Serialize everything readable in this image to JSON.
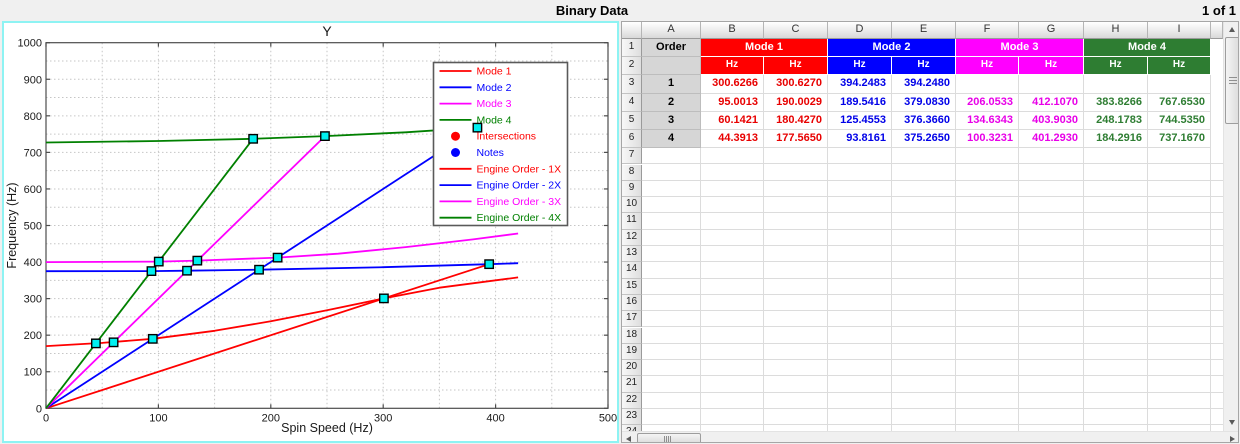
{
  "window": {
    "title": "Binary Data",
    "page_indicator": "1 of 1"
  },
  "chart_data": {
    "type": "line",
    "title": "Y",
    "xlabel": "Spin Speed (Hz)",
    "ylabel": "Frequency (Hz)",
    "xlim": [
      0,
      500
    ],
    "ylim": [
      0,
      1000
    ],
    "xticks": [
      0,
      100,
      200,
      300,
      400,
      500
    ],
    "yticks": [
      0,
      100,
      200,
      300,
      400,
      500,
      600,
      700,
      800,
      900,
      1000
    ],
    "grid": "dotted gray every 50 Hz both axes",
    "legend_position": "upper right",
    "series": [
      {
        "name": "Mode 1",
        "color": "#ff0000",
        "points": [
          [
            0,
            170
          ],
          [
            50,
            179
          ],
          [
            95,
            190
          ],
          [
            150,
            212
          ],
          [
            200,
            238
          ],
          [
            250,
            268
          ],
          [
            300.6,
            300.6
          ],
          [
            350,
            330
          ],
          [
            420,
            358
          ]
        ]
      },
      {
        "name": "Mode 2",
        "color": "#0000ff",
        "points": [
          [
            0,
            375
          ],
          [
            93.8,
            375.3
          ],
          [
            125.5,
            376.4
          ],
          [
            189.5,
            379.1
          ],
          [
            300,
            386
          ],
          [
            394.2,
            394.2
          ],
          [
            420,
            397
          ]
        ]
      },
      {
        "name": "Mode 3",
        "color": "#ff00ff",
        "points": [
          [
            0,
            400
          ],
          [
            100.3,
            401.3
          ],
          [
            134.6,
            403.9
          ],
          [
            206.1,
            412.1
          ],
          [
            260,
            423
          ],
          [
            320,
            441
          ],
          [
            380,
            462
          ],
          [
            420,
            478
          ]
        ]
      },
      {
        "name": "Mode 4",
        "color": "#008000",
        "points": [
          [
            0,
            727
          ],
          [
            100,
            731
          ],
          [
            184.3,
            737.2
          ],
          [
            248.2,
            744.5
          ],
          [
            320,
            755
          ],
          [
            383.8,
            767.7
          ],
          [
            420,
            772
          ]
        ]
      },
      {
        "name": "Engine Order - 1X",
        "color": "#ff0000",
        "points": [
          [
            0,
            0
          ],
          [
            394.2483,
            394.248
          ]
        ]
      },
      {
        "name": "Engine Order - 2X",
        "color": "#0000ff",
        "points": [
          [
            0,
            0
          ],
          [
            383.8266,
            767.653
          ]
        ]
      },
      {
        "name": "Engine Order - 3X",
        "color": "#ff00ff",
        "points": [
          [
            0,
            0
          ],
          [
            248.1783,
            744.535
          ]
        ]
      },
      {
        "name": "Engine Order - 4X",
        "color": "#008000",
        "points": [
          [
            0,
            0
          ],
          [
            184.2916,
            737.167
          ]
        ]
      }
    ],
    "intersections": {
      "marker": "square",
      "fill": "#00f0f0",
      "edge": "#000000",
      "points": [
        [
          300.6266,
          300.627
        ],
        [
          394.2483,
          394.248
        ],
        [
          95.0013,
          190.0029
        ],
        [
          189.5416,
          379.083
        ],
        [
          206.0533,
          412.107
        ],
        [
          383.8266,
          767.653
        ],
        [
          60.1421,
          180.427
        ],
        [
          125.4553,
          376.366
        ],
        [
          134.6343,
          403.903
        ],
        [
          248.1783,
          744.535
        ],
        [
          44.3913,
          177.565
        ],
        [
          93.8161,
          375.265
        ],
        [
          100.3231,
          401.293
        ],
        [
          184.2916,
          737.167
        ]
      ]
    },
    "legend": [
      {
        "label": "Mode 1",
        "color": "#ff0000",
        "glyph": "line"
      },
      {
        "label": "Mode 2",
        "color": "#0000ff",
        "glyph": "line"
      },
      {
        "label": "Mode 3",
        "color": "#ff00ff",
        "glyph": "line"
      },
      {
        "label": "Mode 4",
        "color": "#008000",
        "glyph": "line"
      },
      {
        "label": "Intersections",
        "color": "#ff0000",
        "glyph": "dot"
      },
      {
        "label": "Notes",
        "color": "#0000ff",
        "glyph": "dot"
      },
      {
        "label": "Engine Order - 1X",
        "color": "#ff0000",
        "glyph": "line"
      },
      {
        "label": "Engine Order - 2X",
        "color": "#0000ff",
        "glyph": "line"
      },
      {
        "label": "Engine Order - 3X",
        "color": "#ff00ff",
        "glyph": "line"
      },
      {
        "label": "Engine Order - 4X",
        "color": "#008000",
        "glyph": "line"
      }
    ]
  },
  "table": {
    "column_letters": [
      "A",
      "B",
      "C",
      "D",
      "E",
      "F",
      "G",
      "H",
      "I"
    ],
    "visible_row_numbers": 24,
    "order_header": "Order",
    "unit_label": "Hz",
    "groups": [
      {
        "label": "Mode 1",
        "color": "#ff0000",
        "text_color": "#e80000"
      },
      {
        "label": "Mode 2",
        "color": "#0000ff",
        "text_color": "#0000e8"
      },
      {
        "label": "Mode 3",
        "color": "#ff00ff",
        "text_color": "#e800e8"
      },
      {
        "label": "Mode 4",
        "color": "#2e7d32",
        "text_color": "#2e7d32"
      }
    ],
    "rows": [
      {
        "order": "1",
        "values": [
          "300.6266",
          "300.6270",
          "394.2483",
          "394.2480",
          "",
          "",
          "",
          ""
        ]
      },
      {
        "order": "2",
        "values": [
          "95.0013",
          "190.0029",
          "189.5416",
          "379.0830",
          "206.0533",
          "412.1070",
          "383.8266",
          "767.6530"
        ]
      },
      {
        "order": "3",
        "values": [
          "60.1421",
          "180.4270",
          "125.4553",
          "376.3660",
          "134.6343",
          "403.9030",
          "248.1783",
          "744.5350"
        ]
      },
      {
        "order": "4",
        "values": [
          "44.3913",
          "177.5650",
          "93.8161",
          "375.2650",
          "100.3231",
          "401.2930",
          "184.2916",
          "737.1670"
        ]
      }
    ]
  }
}
